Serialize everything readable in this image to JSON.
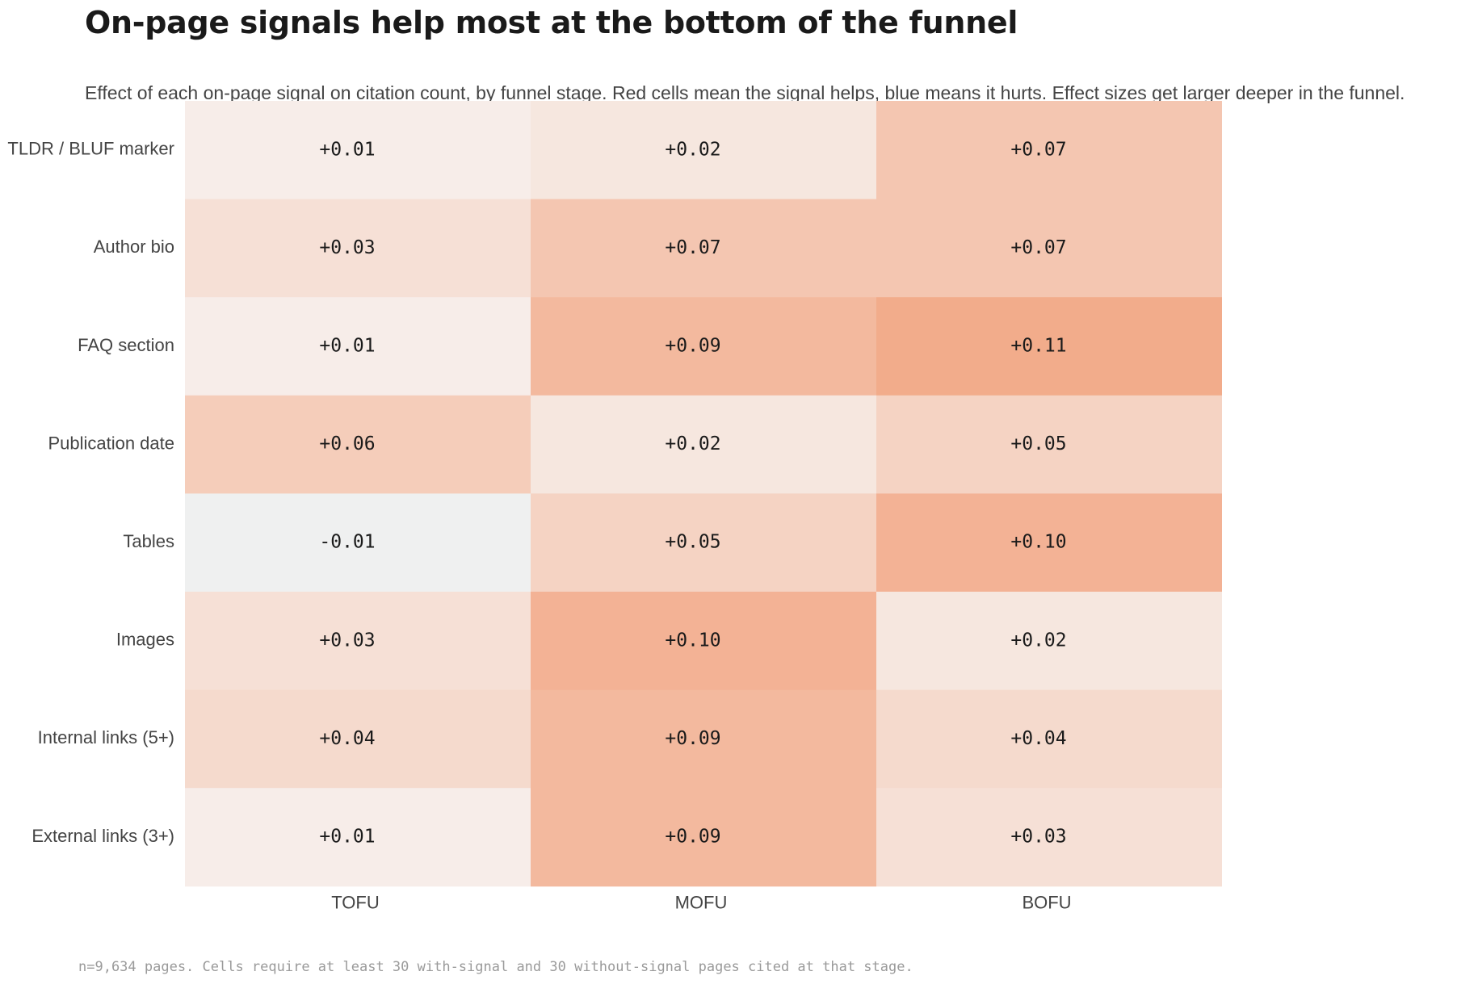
{
  "title": "On-page signals help most at the bottom of the funnel",
  "subtitle": "Effect of each on-page signal on citation count, by funnel stage. Red cells mean the signal helps, blue means it hurts. Effect sizes get larger deeper in the funnel.",
  "footnote": "n=9,634 pages. Cells require at least 30 with-signal and 30 without-signal pages cited at that stage.",
  "chart_data": {
    "type": "heatmap",
    "columns": [
      "TOFU",
      "MOFU",
      "BOFU"
    ],
    "rows": [
      "TLDR / BLUF marker",
      "Author bio",
      "FAQ section",
      "Publication date",
      "Tables",
      "Images",
      "Internal links (5+)",
      "External links (3+)"
    ],
    "values": [
      [
        0.01,
        0.02,
        0.07
      ],
      [
        0.03,
        0.07,
        0.07
      ],
      [
        0.01,
        0.09,
        0.11
      ],
      [
        0.06,
        0.02,
        0.05
      ],
      [
        -0.01,
        0.05,
        0.1
      ],
      [
        0.03,
        0.1,
        0.02
      ],
      [
        0.04,
        0.09,
        0.04
      ],
      [
        0.01,
        0.09,
        0.03
      ]
    ],
    "labels": [
      [
        "+0.01",
        "+0.02",
        "+0.07"
      ],
      [
        "+0.03",
        "+0.07",
        "+0.07"
      ],
      [
        "+0.01",
        "+0.09",
        "+0.11"
      ],
      [
        "+0.06",
        "+0.02",
        "+0.05"
      ],
      [
        "-0.01",
        "+0.05",
        "+0.10"
      ],
      [
        "+0.03",
        "+0.10",
        "+0.02"
      ],
      [
        "+0.04",
        "+0.09",
        "+0.04"
      ],
      [
        "+0.01",
        "+0.09",
        "+0.03"
      ]
    ],
    "positive_color": "#f2a582",
    "negative_color": "#92c5de",
    "neutral_color": "#f7f4f2"
  }
}
